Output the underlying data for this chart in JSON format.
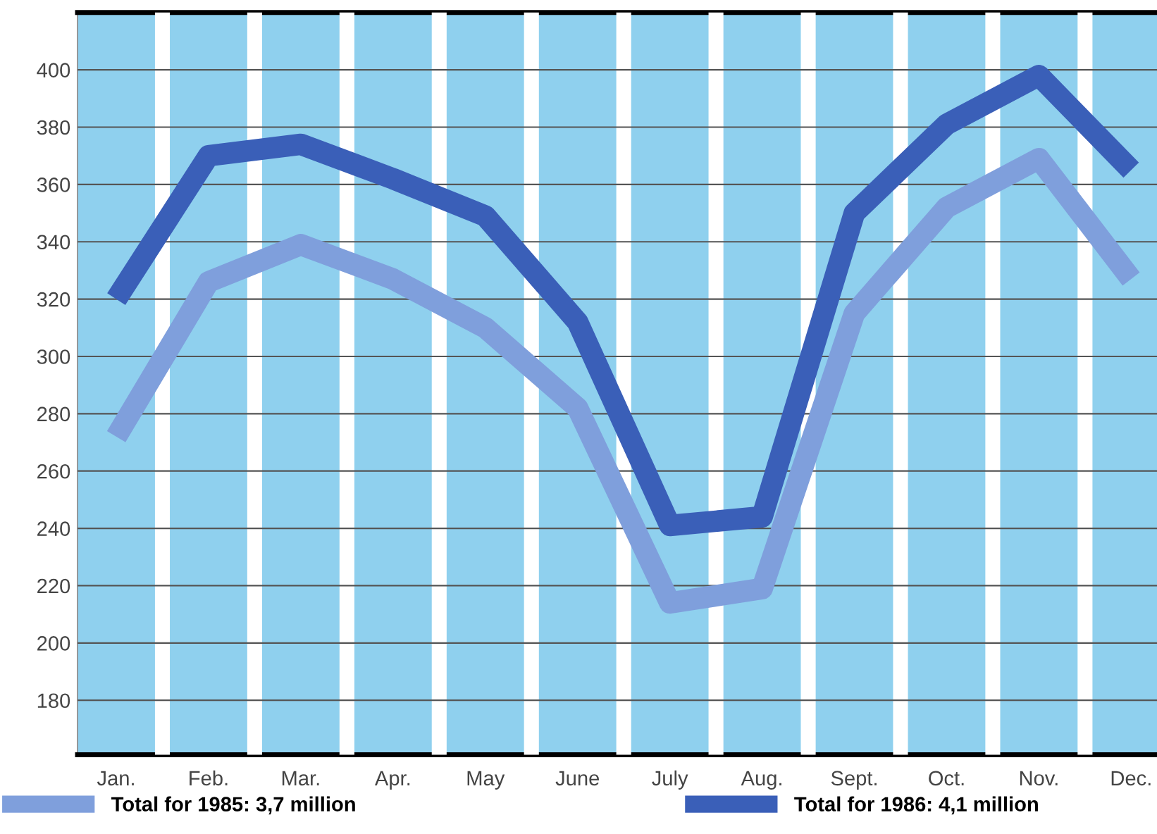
{
  "chart_data": {
    "type": "line",
    "categories": [
      "Jan.",
      "Feb.",
      "Mar.",
      "Apr.",
      "May",
      "June",
      "July",
      "Aug.",
      "Sept.",
      "Oct.",
      "Nov.",
      "Dec."
    ],
    "series": [
      {
        "name": "Total for 1985: 3,7 million",
        "color": "#7f9fdc",
        "values": [
          272,
          326,
          339,
          327,
          310,
          282,
          214,
          219,
          315,
          352,
          369,
          327
        ]
      },
      {
        "name": "Total for 1986: 4,1 million",
        "color": "#3a5fb8",
        "values": [
          320,
          370,
          374,
          362,
          349,
          312,
          241,
          244,
          350,
          381,
          398,
          365
        ]
      }
    ],
    "ylim": [
      161,
      420
    ],
    "yticks": [
      180,
      200,
      220,
      240,
      260,
      280,
      300,
      320,
      340,
      360,
      380,
      400
    ],
    "grid": "y",
    "legend": "bottom",
    "line_style": "solid"
  }
}
